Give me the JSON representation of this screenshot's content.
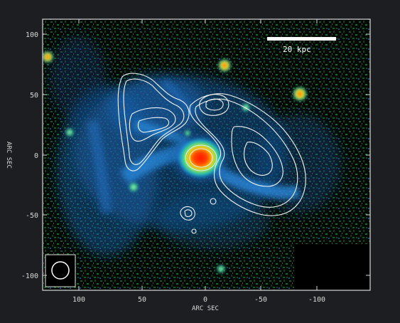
{
  "figure": {
    "xlabel": "ARC SEC",
    "ylabel": "ARC SEC",
    "x_ticks": [
      "100",
      "50",
      "0",
      "-50",
      "-100"
    ],
    "y_ticks": [
      "100",
      "50",
      "0",
      "-50",
      "-100"
    ],
    "scale_bar_label": "20 kpc",
    "colors": {
      "background": "#1d1e22",
      "frame": "#d8d8d8",
      "contour": "#ffffff",
      "core_red": "#ff1a00",
      "core_yellow": "#ffe600",
      "core_green": "#35e060",
      "diffuse_blue": "#1f7dd4",
      "noise_green": "#0f5a2c"
    }
  }
}
